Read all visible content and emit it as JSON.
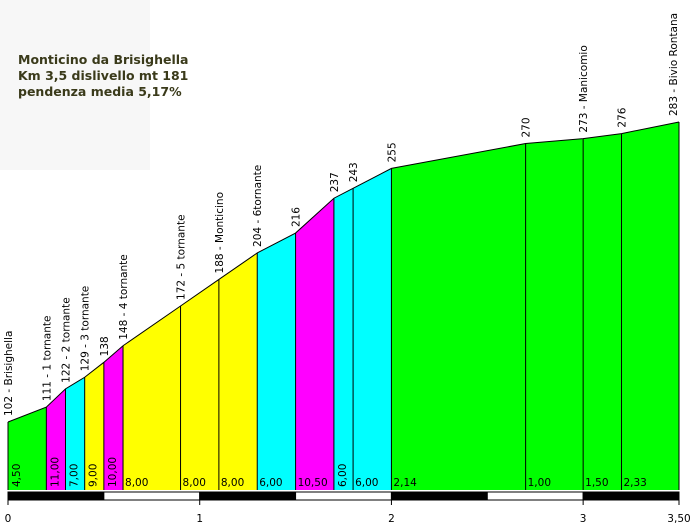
{
  "info": {
    "line1": "Monticino da Brisighella",
    "line2": "Km 3,5 dislivello mt 181",
    "line3": "pendenza media 5,17%"
  },
  "chart_data": {
    "type": "area",
    "title": "Monticino da Brisighella",
    "x_unit": "km",
    "xlim": [
      0,
      3.5
    ],
    "x_ticks": [
      "0",
      "1",
      "2",
      "3",
      "3,50"
    ],
    "profile_points": [
      {
        "x": 0.0,
        "elev": 102,
        "label": "102 - Brisighella"
      },
      {
        "x": 0.2,
        "elev": 111,
        "label": "111 - 1 tornante"
      },
      {
        "x": 0.3,
        "elev": 122,
        "label": "122 - 2 tornante"
      },
      {
        "x": 0.4,
        "elev": 129,
        "label": "129 - 3 tornante"
      },
      {
        "x": 0.5,
        "elev": 138,
        "label": "138"
      },
      {
        "x": 0.6,
        "elev": 148,
        "label": "148 - 4 tornante"
      },
      {
        "x": 0.9,
        "elev": 172,
        "label": "172 - 5 tornante"
      },
      {
        "x": 1.1,
        "elev": 188,
        "label": "188 - Monticino"
      },
      {
        "x": 1.3,
        "elev": 204,
        "label": "204 - 6tornante"
      },
      {
        "x": 1.5,
        "elev": 216,
        "label": "216"
      },
      {
        "x": 1.7,
        "elev": 237,
        "label": "237"
      },
      {
        "x": 1.8,
        "elev": 243,
        "label": "243"
      },
      {
        "x": 2.0,
        "elev": 255,
        "label": "255"
      },
      {
        "x": 2.7,
        "elev": 270,
        "label": "270"
      },
      {
        "x": 3.0,
        "elev": 273,
        "label": "273 - Manicomio"
      },
      {
        "x": 3.2,
        "elev": 276,
        "label": "276"
      },
      {
        "x": 3.5,
        "elev": 283,
        "label": "283 - Bivio Rontana"
      }
    ],
    "segments": [
      {
        "grade": "4,50",
        "color": "#00ff00"
      },
      {
        "grade": "11,00",
        "color": "#ff00ff"
      },
      {
        "grade": "7,00",
        "color": "#00ffff"
      },
      {
        "grade": "9,00",
        "color": "#ffff00"
      },
      {
        "grade": "10,00",
        "color": "#ff00ff"
      },
      {
        "grade": "8,00",
        "color": "#ffff00"
      },
      {
        "grade": "8,00",
        "color": "#ffff00"
      },
      {
        "grade": "8,00",
        "color": "#ffff00"
      },
      {
        "grade": "6,00",
        "color": "#00ffff"
      },
      {
        "grade": "10,50",
        "color": "#ff00ff"
      },
      {
        "grade": "6,00",
        "color": "#00ffff"
      },
      {
        "grade": "6,00",
        "color": "#00ffff"
      },
      {
        "grade": "2,14",
        "color": "#00ff00"
      },
      {
        "grade": "1,00",
        "color": "#00ff00"
      },
      {
        "grade": "1,50",
        "color": "#00ff00"
      },
      {
        "grade": "2,33",
        "color": "#00ff00"
      }
    ],
    "grade_labels_vertical": [
      true,
      true,
      true,
      true,
      true,
      false,
      false,
      false,
      false,
      false,
      true,
      false,
      false,
      false,
      false,
      false
    ],
    "grid": false,
    "legend": "none"
  }
}
